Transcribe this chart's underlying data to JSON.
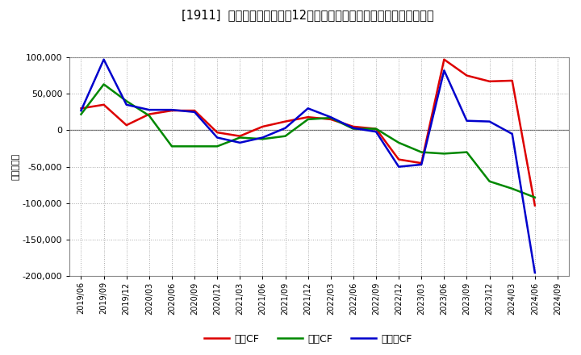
{
  "title": "[1911]  キャッシュフローの12か月移動合計の対前年同期増減額の推移",
  "ylabel": "（百万円）",
  "background_color": "#ffffff",
  "plot_bg_color": "#ffffff",
  "grid_color": "#aaaaaa",
  "ylim": [
    -200000,
    100000
  ],
  "yticks": [
    -200000,
    -150000,
    -100000,
    -50000,
    0,
    50000,
    100000
  ],
  "dates": [
    "2019/06",
    "2019/09",
    "2019/12",
    "2020/03",
    "2020/06",
    "2020/09",
    "2020/12",
    "2021/03",
    "2021/06",
    "2021/09",
    "2021/12",
    "2022/03",
    "2022/06",
    "2022/09",
    "2022/12",
    "2023/03",
    "2023/06",
    "2023/09",
    "2023/12",
    "2024/03",
    "2024/06",
    "2024/09"
  ],
  "eigyo_cf": [
    30000,
    35000,
    7000,
    22000,
    27000,
    27000,
    -3000,
    -8000,
    5000,
    12000,
    18000,
    15000,
    5000,
    2000,
    -40000,
    -45000,
    97000,
    75000,
    67000,
    68000,
    -103000,
    null
  ],
  "toshi_cf": [
    22000,
    63000,
    40000,
    20000,
    -22000,
    -22000,
    -22000,
    -10000,
    -12000,
    -8000,
    15000,
    17000,
    2000,
    2000,
    -17000,
    -30000,
    -32000,
    -30000,
    -70000,
    -80000,
    -92000,
    null
  ],
  "free_cf": [
    27000,
    97000,
    35000,
    28000,
    28000,
    25000,
    -10000,
    -17000,
    -10000,
    3000,
    30000,
    18000,
    3000,
    -2000,
    -50000,
    -47000,
    82000,
    13000,
    12000,
    -5000,
    -195000,
    null
  ],
  "legend_labels": [
    "営業CF",
    "投資CF",
    "フリーCF"
  ],
  "eigyo_color": "#dd0000",
  "toshi_color": "#008800",
  "free_color": "#0000cc",
  "line_width": 1.8
}
